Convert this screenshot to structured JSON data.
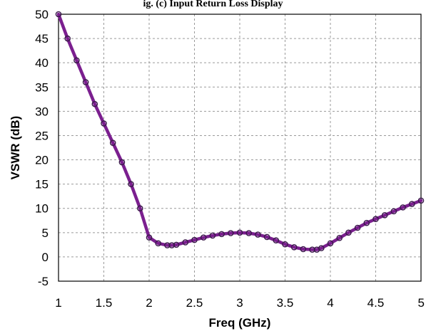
{
  "caption_fragment": "ig. (c) Input Return Loss Display",
  "chart_data": {
    "type": "line",
    "title": "",
    "xlabel": "Freq (GHz)",
    "ylabel": "VSWR (dB)",
    "xlim": [
      1,
      5
    ],
    "ylim": [
      -5,
      50
    ],
    "x_ticks": [
      "1",
      "1.5",
      "2",
      "2.5",
      "3",
      "3.5",
      "4",
      "4.5",
      "5"
    ],
    "y_ticks": [
      "50",
      "45",
      "40",
      "35",
      "30",
      "25",
      "20",
      "15",
      "10",
      "5",
      "0",
      "-5"
    ],
    "grid": true,
    "legend": "none",
    "colors": {
      "line": "#7b1f8f",
      "marker": "#3a1a4a",
      "grid": "#9a9a9a",
      "axis": "#000000"
    },
    "series": [
      {
        "marker": "circle",
        "x": [
          1.0,
          1.1,
          1.2,
          1.3,
          1.4,
          1.5,
          1.6,
          1.7,
          1.8,
          1.9,
          2.0,
          2.1,
          2.2,
          2.25,
          2.3,
          2.4,
          2.5,
          2.6,
          2.7,
          2.8,
          2.9,
          3.0,
          3.1,
          3.2,
          3.3,
          3.4,
          3.5,
          3.6,
          3.7,
          3.8,
          3.85,
          3.9,
          4.0,
          4.1,
          4.2,
          4.3,
          4.4,
          4.5,
          4.6,
          4.7,
          4.8,
          4.9,
          5.0
        ],
        "y": [
          50.0,
          45.0,
          40.5,
          36.0,
          31.5,
          27.5,
          23.5,
          19.5,
          15.0,
          10.0,
          4.0,
          2.8,
          2.4,
          2.4,
          2.5,
          3.0,
          3.5,
          4.0,
          4.4,
          4.7,
          4.9,
          5.0,
          4.9,
          4.6,
          4.1,
          3.4,
          2.6,
          2.0,
          1.6,
          1.5,
          1.5,
          1.8,
          2.8,
          3.9,
          5.0,
          6.0,
          7.0,
          7.8,
          8.6,
          9.4,
          10.2,
          10.9,
          11.6
        ]
      }
    ]
  }
}
